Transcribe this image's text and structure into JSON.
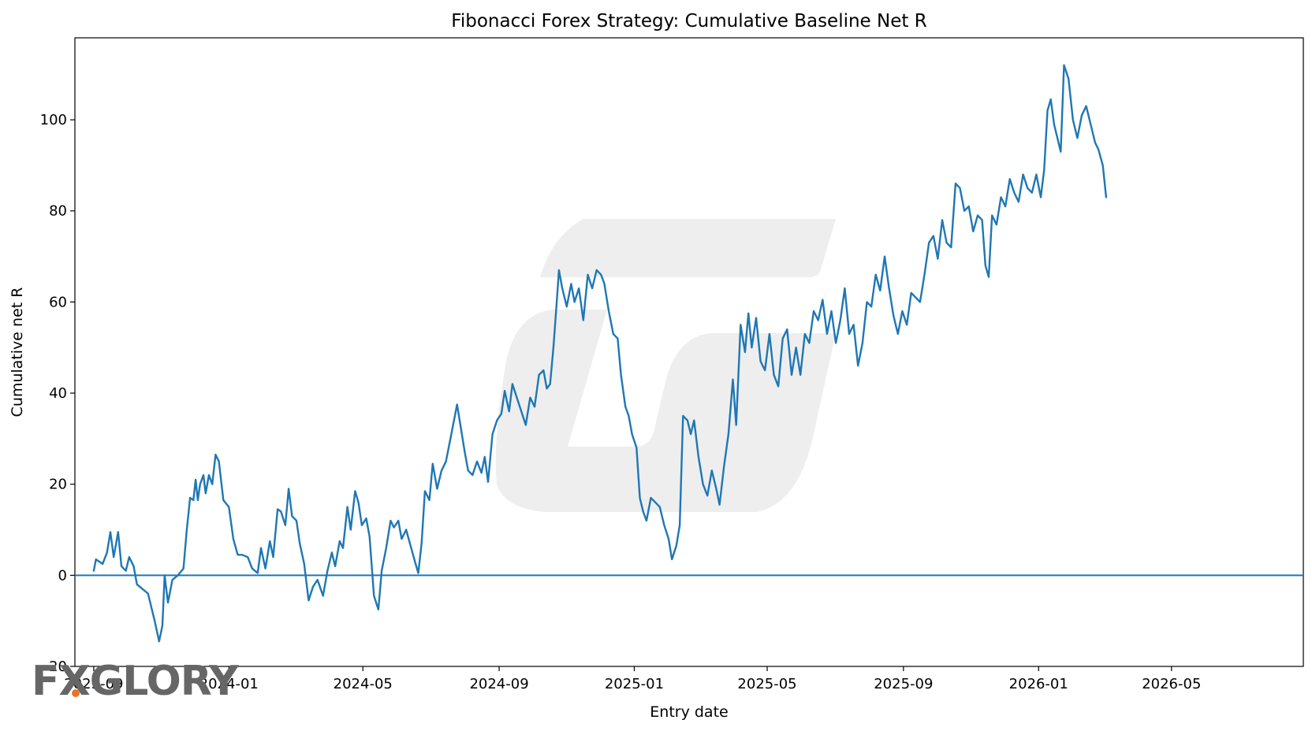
{
  "chart_data": {
    "type": "line",
    "title": "Fibonacci Forex Strategy: Cumulative Baseline Net R",
    "xlabel": "Entry date",
    "ylabel": "Cumulative net R",
    "xlim": [
      "2023-08-15",
      "2026-08-28"
    ],
    "ylim": [
      -20,
      118
    ],
    "x_ticks": [
      "2023-09",
      "2024-01",
      "2024-05",
      "2024-09",
      "2025-01",
      "2025-05",
      "2025-09",
      "2026-01",
      "2026-05"
    ],
    "y_ticks": [
      -20,
      0,
      20,
      40,
      60,
      80,
      100
    ],
    "grid": false,
    "reference_line": {
      "y": 0
    },
    "colors": {
      "series": "#1f77b4",
      "reference": "#1f77b4",
      "axes": "#000000"
    },
    "series": [
      {
        "points": [
          [
            "2023-09-01",
            1
          ],
          [
            "2023-09-03",
            3.5
          ],
          [
            "2023-09-09",
            2.5
          ],
          [
            "2023-09-13",
            5
          ],
          [
            "2023-09-16",
            9.5
          ],
          [
            "2023-09-19",
            4
          ],
          [
            "2023-09-23",
            9.5
          ],
          [
            "2023-09-26",
            2
          ],
          [
            "2023-09-30",
            1
          ],
          [
            "2023-10-03",
            4
          ],
          [
            "2023-10-07",
            2
          ],
          [
            "2023-10-10",
            -2
          ],
          [
            "2023-10-15",
            -3
          ],
          [
            "2023-10-20",
            -4
          ],
          [
            "2023-10-26",
            -10
          ],
          [
            "2023-10-30",
            -14.5
          ],
          [
            "2023-11-02",
            -11
          ],
          [
            "2023-11-04",
            0
          ],
          [
            "2023-11-07",
            -6
          ],
          [
            "2023-11-11",
            -1
          ],
          [
            "2023-11-16",
            0
          ],
          [
            "2023-11-21",
            1.5
          ],
          [
            "2023-11-24",
            10
          ],
          [
            "2023-11-27",
            17
          ],
          [
            "2023-11-30",
            16.5
          ],
          [
            "2023-12-02",
            21
          ],
          [
            "2023-12-04",
            16.5
          ],
          [
            "2023-12-06",
            20
          ],
          [
            "2023-12-09",
            22
          ],
          [
            "2023-12-11",
            18
          ],
          [
            "2023-12-14",
            22
          ],
          [
            "2023-12-17",
            20
          ],
          [
            "2023-12-20",
            26.5
          ],
          [
            "2023-12-23",
            25
          ],
          [
            "2023-12-27",
            16.5
          ],
          [
            "2024-01-01",
            15
          ],
          [
            "2024-01-05",
            8
          ],
          [
            "2024-01-09",
            4.5
          ],
          [
            "2024-01-13",
            4.5
          ],
          [
            "2024-01-18",
            4
          ],
          [
            "2024-01-22",
            1.5
          ],
          [
            "2024-01-27",
            0.5
          ],
          [
            "2024-01-30",
            6
          ],
          [
            "2024-02-03",
            1.5
          ],
          [
            "2024-02-07",
            7.5
          ],
          [
            "2024-02-10",
            4
          ],
          [
            "2024-02-14",
            14.5
          ],
          [
            "2024-02-17",
            14
          ],
          [
            "2024-02-21",
            11
          ],
          [
            "2024-02-24",
            19
          ],
          [
            "2024-02-27",
            13
          ],
          [
            "2024-03-02",
            12
          ],
          [
            "2024-03-05",
            7
          ],
          [
            "2024-03-09",
            2.5
          ],
          [
            "2024-03-13",
            -5.5
          ],
          [
            "2024-03-17",
            -2.5
          ],
          [
            "2024-03-21",
            -1
          ],
          [
            "2024-03-26",
            -4.5
          ],
          [
            "2024-03-30",
            1
          ],
          [
            "2024-04-03",
            5
          ],
          [
            "2024-04-06",
            2
          ],
          [
            "2024-04-10",
            7.5
          ],
          [
            "2024-04-13",
            6
          ],
          [
            "2024-04-17",
            15
          ],
          [
            "2024-04-20",
            10
          ],
          [
            "2024-04-24",
            18.5
          ],
          [
            "2024-04-27",
            16
          ],
          [
            "2024-04-30",
            11
          ],
          [
            "2024-05-04",
            12.5
          ],
          [
            "2024-05-07",
            8.5
          ],
          [
            "2024-05-11",
            -4.5
          ],
          [
            "2024-05-15",
            -7.5
          ],
          [
            "2024-05-18",
            1
          ],
          [
            "2024-05-22",
            6
          ],
          [
            "2024-05-26",
            12
          ],
          [
            "2024-05-29",
            10.5
          ],
          [
            "2024-06-02",
            12
          ],
          [
            "2024-06-05",
            8
          ],
          [
            "2024-06-09",
            10
          ],
          [
            "2024-06-13",
            6.5
          ],
          [
            "2024-06-17",
            3
          ],
          [
            "2024-06-20",
            0.5
          ],
          [
            "2024-06-23",
            7
          ],
          [
            "2024-06-26",
            18.5
          ],
          [
            "2024-06-30",
            16.5
          ],
          [
            "2024-07-03",
            24.5
          ],
          [
            "2024-07-07",
            19
          ],
          [
            "2024-07-11",
            23
          ],
          [
            "2024-07-15",
            25
          ],
          [
            "2024-07-19",
            30
          ],
          [
            "2024-07-23",
            35
          ],
          [
            "2024-07-25",
            37.5
          ],
          [
            "2024-07-28",
            33
          ],
          [
            "2024-08-01",
            27
          ],
          [
            "2024-08-04",
            23
          ],
          [
            "2024-08-08",
            22
          ],
          [
            "2024-08-12",
            25
          ],
          [
            "2024-08-16",
            22.5
          ],
          [
            "2024-08-19",
            26
          ],
          [
            "2024-08-22",
            20.5
          ],
          [
            "2024-08-26",
            31
          ],
          [
            "2024-08-30",
            34
          ],
          [
            "2024-09-03",
            35.5
          ],
          [
            "2024-09-06",
            40.5
          ],
          [
            "2024-09-10",
            36
          ],
          [
            "2024-09-13",
            42
          ],
          [
            "2024-09-17",
            39
          ],
          [
            "2024-09-21",
            36
          ],
          [
            "2024-09-25",
            33
          ],
          [
            "2024-09-29",
            39
          ],
          [
            "2024-10-03",
            37
          ],
          [
            "2024-10-07",
            44
          ],
          [
            "2024-10-11",
            45
          ],
          [
            "2024-10-14",
            41
          ],
          [
            "2024-10-17",
            42
          ],
          [
            "2024-10-20",
            50
          ],
          [
            "2024-10-23",
            60
          ],
          [
            "2024-10-25",
            67
          ],
          [
            "2024-10-28",
            63
          ],
          [
            "2024-11-01",
            59
          ],
          [
            "2024-11-05",
            64
          ],
          [
            "2024-11-08",
            60
          ],
          [
            "2024-11-12",
            63
          ],
          [
            "2024-11-16",
            56
          ],
          [
            "2024-11-20",
            66
          ],
          [
            "2024-11-24",
            63
          ],
          [
            "2024-11-28",
            67
          ],
          [
            "2024-12-02",
            66
          ],
          [
            "2024-12-05",
            64
          ],
          [
            "2024-12-09",
            58
          ],
          [
            "2024-12-13",
            53
          ],
          [
            "2024-12-17",
            52
          ],
          [
            "2024-12-20",
            44
          ],
          [
            "2024-12-24",
            37
          ],
          [
            "2024-12-27",
            35
          ],
          [
            "2024-12-30",
            31
          ],
          [
            "2025-01-03",
            28
          ],
          [
            "2025-01-06",
            17
          ],
          [
            "2025-01-09",
            14
          ],
          [
            "2025-01-12",
            12
          ],
          [
            "2025-01-16",
            17
          ],
          [
            "2025-01-20",
            16
          ],
          [
            "2025-01-24",
            15
          ],
          [
            "2025-01-28",
            11
          ],
          [
            "2025-02-01",
            8
          ],
          [
            "2025-02-04",
            3.5
          ],
          [
            "2025-02-08",
            6.5
          ],
          [
            "2025-02-11",
            11
          ],
          [
            "2025-02-14",
            35
          ],
          [
            "2025-02-18",
            34
          ],
          [
            "2025-02-21",
            31
          ],
          [
            "2025-02-24",
            34
          ],
          [
            "2025-02-28",
            26
          ],
          [
            "2025-03-04",
            20
          ],
          [
            "2025-03-08",
            17.5
          ],
          [
            "2025-03-12",
            23
          ],
          [
            "2025-03-16",
            19
          ],
          [
            "2025-03-19",
            15.5
          ],
          [
            "2025-03-23",
            24
          ],
          [
            "2025-03-27",
            31
          ],
          [
            "2025-03-31",
            43
          ],
          [
            "2025-04-03",
            33
          ],
          [
            "2025-04-07",
            55
          ],
          [
            "2025-04-11",
            49
          ],
          [
            "2025-04-14",
            57.5
          ],
          [
            "2025-04-17",
            50
          ],
          [
            "2025-04-21",
            56.5
          ],
          [
            "2025-04-25",
            47
          ],
          [
            "2025-04-29",
            45
          ],
          [
            "2025-05-03",
            53
          ],
          [
            "2025-05-07",
            44
          ],
          [
            "2025-05-11",
            41.5
          ],
          [
            "2025-05-15",
            52
          ],
          [
            "2025-05-19",
            54
          ],
          [
            "2025-05-23",
            44
          ],
          [
            "2025-05-27",
            50
          ],
          [
            "2025-05-31",
            44
          ],
          [
            "2025-06-04",
            53
          ],
          [
            "2025-06-08",
            51
          ],
          [
            "2025-06-12",
            58
          ],
          [
            "2025-06-16",
            56
          ],
          [
            "2025-06-20",
            60.5
          ],
          [
            "2025-06-24",
            53
          ],
          [
            "2025-06-28",
            58
          ],
          [
            "2025-07-02",
            51
          ],
          [
            "2025-07-06",
            56
          ],
          [
            "2025-07-10",
            63
          ],
          [
            "2025-07-14",
            53
          ],
          [
            "2025-07-18",
            55
          ],
          [
            "2025-07-22",
            46
          ],
          [
            "2025-07-26",
            51
          ],
          [
            "2025-07-30",
            60
          ],
          [
            "2025-08-03",
            59
          ],
          [
            "2025-08-07",
            66
          ],
          [
            "2025-08-11",
            62.5
          ],
          [
            "2025-08-15",
            70
          ],
          [
            "2025-08-19",
            63
          ],
          [
            "2025-08-23",
            57
          ],
          [
            "2025-08-27",
            53
          ],
          [
            "2025-08-31",
            58
          ],
          [
            "2025-09-04",
            55
          ],
          [
            "2025-09-08",
            62
          ],
          [
            "2025-09-12",
            61
          ],
          [
            "2025-09-16",
            60
          ],
          [
            "2025-09-20",
            66
          ],
          [
            "2025-09-24",
            73
          ],
          [
            "2025-09-28",
            74.5
          ],
          [
            "2025-10-02",
            69.5
          ],
          [
            "2025-10-06",
            78
          ],
          [
            "2025-10-10",
            73
          ],
          [
            "2025-10-14",
            72
          ],
          [
            "2025-10-18",
            86
          ],
          [
            "2025-10-22",
            85
          ],
          [
            "2025-10-26",
            80
          ],
          [
            "2025-10-30",
            81
          ],
          [
            "2025-11-03",
            75.5
          ],
          [
            "2025-11-07",
            79
          ],
          [
            "2025-11-11",
            78
          ],
          [
            "2025-11-14",
            68
          ],
          [
            "2025-11-17",
            65.5
          ],
          [
            "2025-11-20",
            79
          ],
          [
            "2025-11-24",
            77
          ],
          [
            "2025-11-28",
            83
          ],
          [
            "2025-12-02",
            81
          ],
          [
            "2025-12-06",
            87
          ],
          [
            "2025-12-10",
            84
          ],
          [
            "2025-12-14",
            82
          ],
          [
            "2025-12-18",
            88
          ],
          [
            "2025-12-22",
            85
          ],
          [
            "2025-12-26",
            84
          ],
          [
            "2025-12-30",
            88
          ],
          [
            "2026-01-03",
            83
          ],
          [
            "2026-01-06",
            89
          ],
          [
            "2026-01-09",
            102
          ],
          [
            "2026-01-12",
            104.5
          ],
          [
            "2026-01-15",
            99
          ],
          [
            "2026-01-18",
            96
          ],
          [
            "2026-01-21",
            93
          ],
          [
            "2026-01-24",
            112
          ],
          [
            "2026-01-28",
            109
          ],
          [
            "2026-02-01",
            100
          ],
          [
            "2026-02-05",
            96
          ],
          [
            "2026-02-09",
            101
          ],
          [
            "2026-02-13",
            103
          ],
          [
            "2026-02-17",
            99
          ],
          [
            "2026-02-21",
            95
          ],
          [
            "2026-02-24",
            93.5
          ],
          [
            "2026-02-28",
            90
          ],
          [
            "2026-03-03",
            83
          ]
        ]
      }
    ]
  },
  "watermarks": {
    "logo_text": "FXGLORY"
  }
}
